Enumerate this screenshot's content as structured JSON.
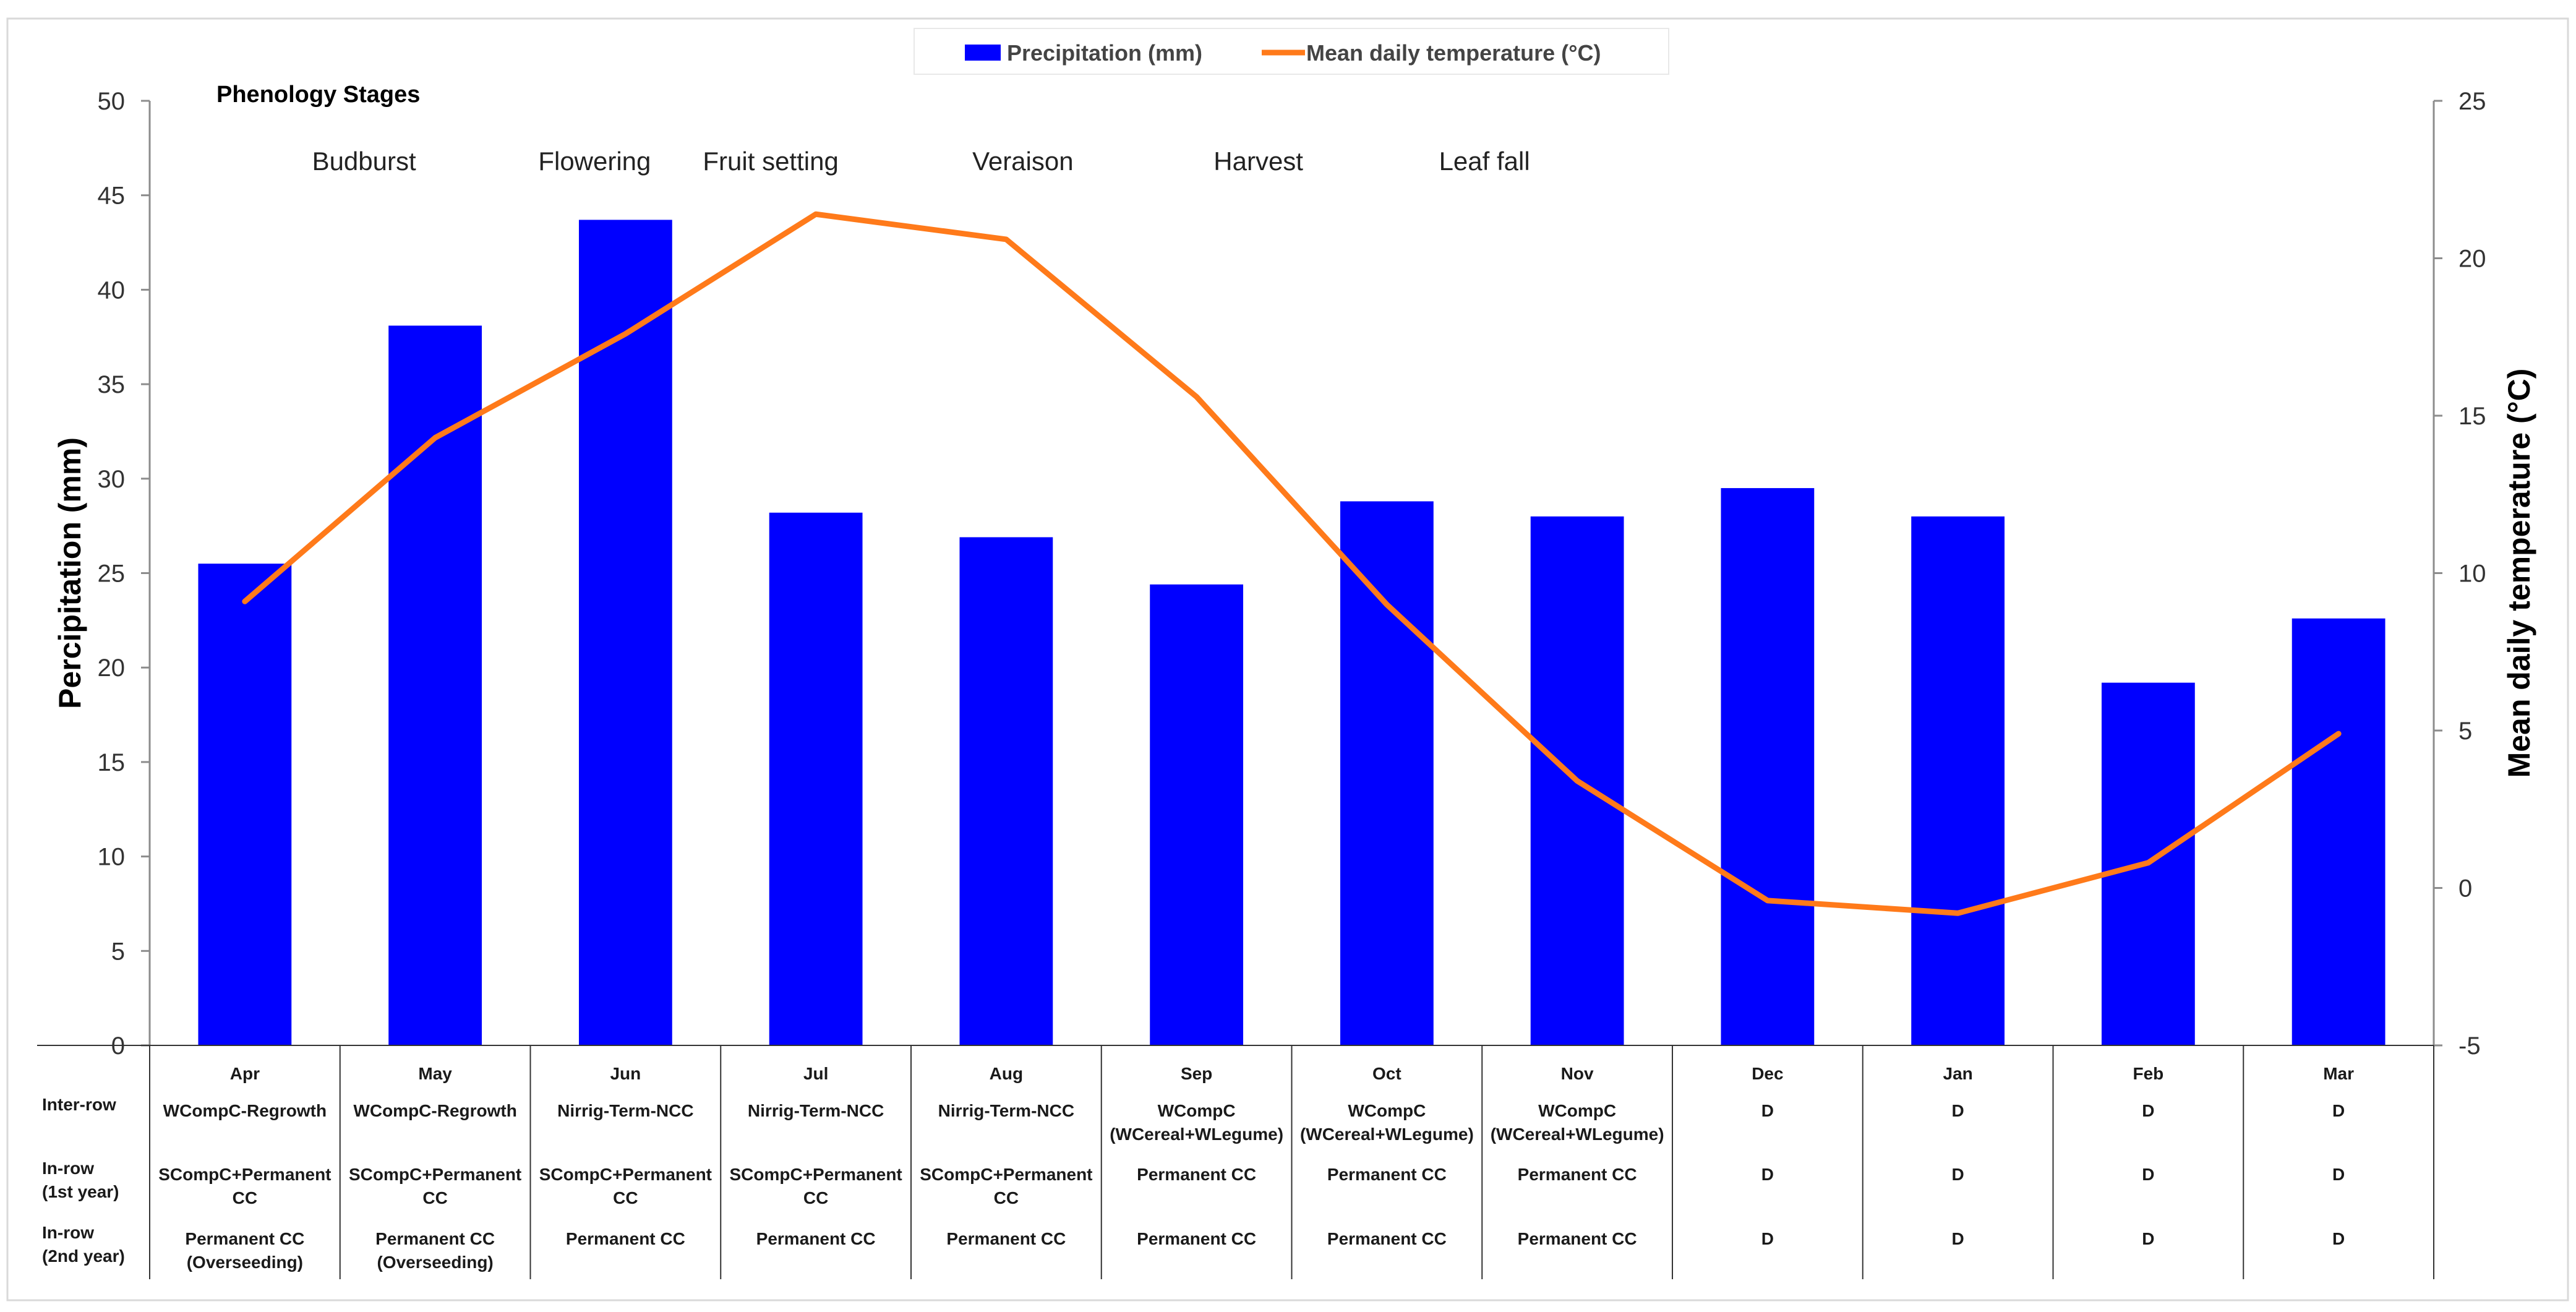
{
  "chart_data": {
    "type": "bar",
    "categories": [
      "Apr",
      "May",
      "Jun",
      "Jul",
      "Aug",
      "Sep",
      "Oct",
      "Nov",
      "Dec",
      "Jan",
      "Feb",
      "Mar"
    ],
    "series": [
      {
        "name": "Precipitation (mm)",
        "kind": "bar",
        "axis": "left",
        "color": "#0000ff",
        "values": [
          25.5,
          38.1,
          43.7,
          28.2,
          26.9,
          24.4,
          28.8,
          28.0,
          29.5,
          28.0,
          19.2,
          22.6
        ]
      },
      {
        "name": "Mean daily temperature (°C)",
        "kind": "line",
        "axis": "right",
        "color": "#ff7a1a",
        "values": [
          9.1,
          14.3,
          17.6,
          21.4,
          20.6,
          15.6,
          9.0,
          3.4,
          -0.4,
          -0.8,
          0.8,
          4.9
        ]
      }
    ],
    "ylabel": "Percipitation (mm)",
    "y2label": "Mean daily temperature (°C)",
    "ylim": [
      0,
      50
    ],
    "y2lim": [
      -5,
      25
    ],
    "yticks": [
      0,
      5,
      10,
      15,
      20,
      25,
      30,
      35,
      40,
      45,
      50
    ],
    "y2ticks": [
      -5,
      0,
      5,
      10,
      15,
      20,
      25
    ],
    "legend_position": "top-center",
    "grid": false,
    "phenology": {
      "title": "Phenology Stages",
      "stages": [
        {
          "label": "Budburst",
          "at": "May"
        },
        {
          "label": "Flowering",
          "at": "Jun"
        },
        {
          "label": "Fruit setting",
          "at": "Jul"
        },
        {
          "label": "Veraison",
          "at": "Aug"
        },
        {
          "label": "Harvest",
          "at": "Sep"
        },
        {
          "label": "Leaf fall",
          "at": "Nov"
        }
      ]
    },
    "table": {
      "rows": [
        {
          "label": [
            "Inter-row"
          ],
          "cells": [
            [
              "WCompC-Regrowth"
            ],
            [
              "WCompC-Regrowth"
            ],
            [
              "Nirrig-Term-NCC"
            ],
            [
              "Nirrig-Term-NCC"
            ],
            [
              "Nirrig-Term-NCC"
            ],
            [
              "WCompC",
              "(WCereal+WLegume)"
            ],
            [
              "WCompC",
              "(WCereal+WLegume)"
            ],
            [
              "WCompC",
              "(WCereal+WLegume)"
            ],
            [
              "D"
            ],
            [
              "D"
            ],
            [
              "D"
            ],
            [
              "D"
            ]
          ]
        },
        {
          "label": [
            "In-row",
            "(1st year)"
          ],
          "cells": [
            [
              "SCompC+Permanent",
              "CC"
            ],
            [
              "SCompC+Permanent",
              "CC"
            ],
            [
              "SCompC+Permanent",
              "CC"
            ],
            [
              "SCompC+Permanent",
              "CC"
            ],
            [
              "SCompC+Permanent",
              "CC"
            ],
            [
              "Permanent CC"
            ],
            [
              "Permanent CC"
            ],
            [
              "Permanent CC"
            ],
            [
              "D"
            ],
            [
              "D"
            ],
            [
              "D"
            ],
            [
              "D"
            ]
          ]
        },
        {
          "label": [
            "In-row",
            "(2nd year)"
          ],
          "cells": [
            [
              "Permanent CC",
              "(Overseeding)"
            ],
            [
              "Permanent CC",
              "(Overseeding)"
            ],
            [
              "Permanent CC"
            ],
            [
              "Permanent CC"
            ],
            [
              "Permanent CC"
            ],
            [
              "Permanent CC"
            ],
            [
              "Permanent CC"
            ],
            [
              "Permanent CC"
            ],
            [
              "D"
            ],
            [
              "D"
            ],
            [
              "D"
            ],
            [
              "D"
            ]
          ]
        }
      ]
    }
  }
}
